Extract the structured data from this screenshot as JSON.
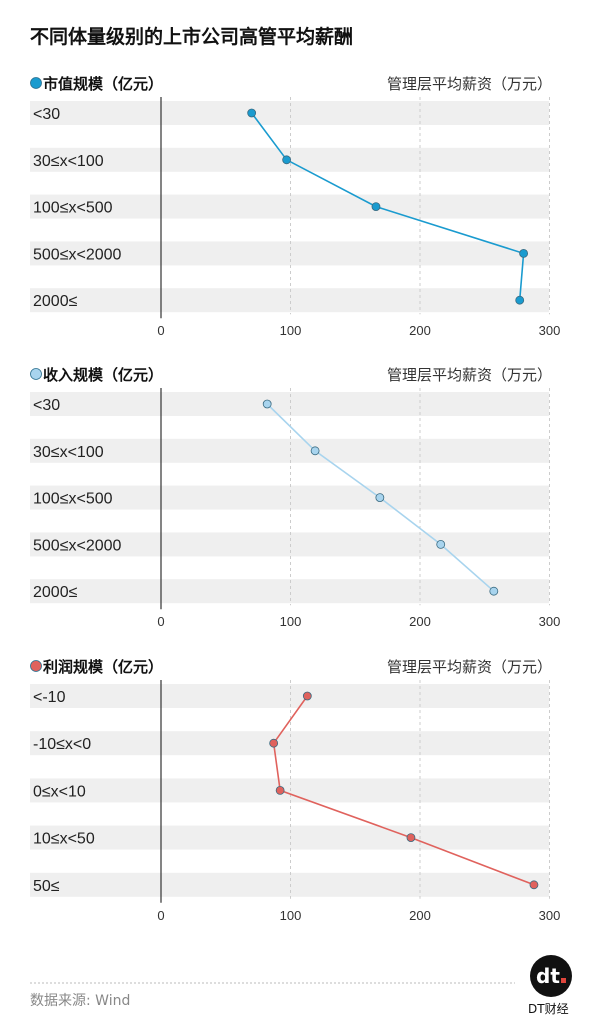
{
  "title": "不同体量级别的上市公司高管平均薪酬",
  "source": "数据来源: Wind",
  "brand": {
    "logo_text": "dt",
    "name": "DT财经"
  },
  "chart_data": [
    {
      "type": "line",
      "legend": "市值规模（亿元）",
      "xlabel": "管理层平均薪资（万元）",
      "color": "#1a9bcf",
      "categories": [
        "<30",
        "30≤x<100",
        "100≤x<500",
        "500≤x<2000",
        "2000≤"
      ],
      "values": [
        70,
        97,
        166,
        280,
        277
      ],
      "xlim": [
        0,
        300
      ],
      "xticks": [
        "0",
        "100",
        "200",
        "300"
      ]
    },
    {
      "type": "line",
      "legend": "收入规模（亿元）",
      "xlabel": "管理层平均薪资（万元）",
      "color": "#a8d4ee",
      "categories": [
        "<30",
        "30≤x<100",
        "100≤x<500",
        "500≤x<2000",
        "2000≤"
      ],
      "values": [
        82,
        119,
        169,
        216,
        257
      ],
      "xlim": [
        0,
        300
      ],
      "xticks": [
        "0",
        "100",
        "200",
        "300"
      ]
    },
    {
      "type": "line",
      "legend": "利润规模（亿元）",
      "xlabel": "管理层平均薪资（万元）",
      "color": "#e0625d",
      "categories": [
        "<-10",
        "-10≤x<0",
        "0≤x<10",
        "10≤x<50",
        "50≤"
      ],
      "values": [
        113,
        87,
        92,
        193,
        288
      ],
      "xlim": [
        0,
        300
      ],
      "xticks": [
        "0",
        "100",
        "200",
        "300"
      ]
    }
  ]
}
